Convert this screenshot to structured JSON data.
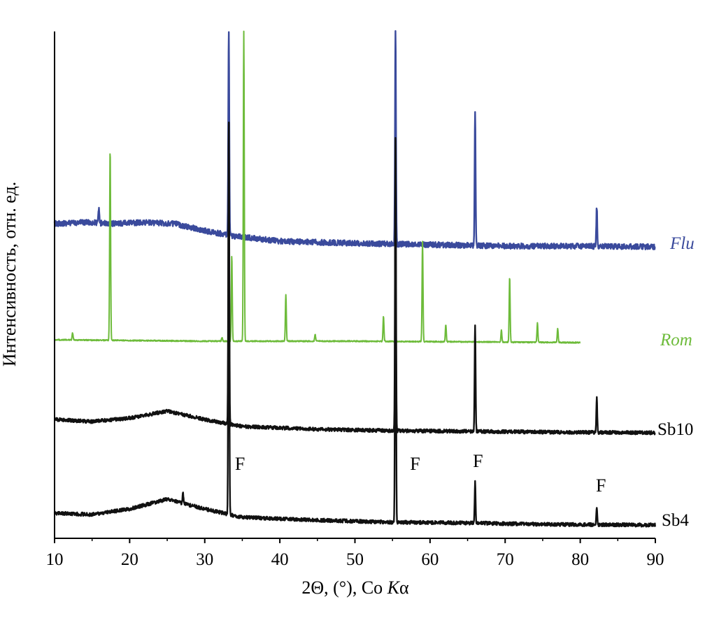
{
  "chart_data": {
    "type": "line",
    "xlabel": {
      "prefix": "2Θ, (°), Co ",
      "italic": "K",
      "suffix": "α"
    },
    "ylabel": "Интенсивность, отн. ед.",
    "xlim": [
      10,
      90
    ],
    "xticks": [
      10,
      20,
      30,
      40,
      50,
      60,
      70,
      80,
      90
    ],
    "y_ticks_shown": false,
    "grid": false,
    "legend": "labels at end of each curve",
    "series": [
      {
        "name": "Flu",
        "italic": true,
        "color": "#3a4a9c",
        "x_range": [
          10,
          90
        ],
        "baseline_points": [
          [
            10,
            320
          ],
          [
            14,
            318
          ],
          [
            18,
            320
          ],
          [
            22,
            318
          ],
          [
            26,
            320
          ],
          [
            30,
            330
          ],
          [
            34,
            338
          ],
          [
            40,
            345
          ],
          [
            50,
            348
          ],
          [
            60,
            350
          ],
          [
            70,
            352
          ],
          [
            80,
            352
          ],
          [
            90,
            353
          ]
        ],
        "noise": 4,
        "peaks": [
          {
            "x": 15.9,
            "top": 298
          },
          {
            "x": 33.2,
            "top": 45
          },
          {
            "x": 55.4,
            "top": 45
          },
          {
            "x": 66.0,
            "top": 158
          },
          {
            "x": 82.2,
            "top": 296
          }
        ]
      },
      {
        "name": "Rom",
        "italic": true,
        "color": "#6dbb3a",
        "x_range": [
          10,
          80
        ],
        "baseline_points": [
          [
            10,
            486
          ],
          [
            30,
            488
          ],
          [
            50,
            488
          ],
          [
            80,
            490
          ]
        ],
        "noise": 0.8,
        "peaks": [
          {
            "x": 12.4,
            "top": 476
          },
          {
            "x": 17.4,
            "top": 212
          },
          {
            "x": 32.3,
            "top": 483
          },
          {
            "x": 33.6,
            "top": 366
          },
          {
            "x": 35.2,
            "top": 45
          },
          {
            "x": 40.8,
            "top": 422
          },
          {
            "x": 44.7,
            "top": 478
          },
          {
            "x": 53.8,
            "top": 452
          },
          {
            "x": 59.0,
            "top": 346
          },
          {
            "x": 62.1,
            "top": 464
          },
          {
            "x": 69.5,
            "top": 472
          },
          {
            "x": 70.6,
            "top": 396
          },
          {
            "x": 74.3,
            "top": 462
          },
          {
            "x": 77.0,
            "top": 470
          }
        ]
      },
      {
        "name": "Sb10",
        "italic": false,
        "color": "#111111",
        "x_range": [
          10,
          90
        ],
        "baseline_points": [
          [
            10,
            600
          ],
          [
            15,
            603
          ],
          [
            20,
            598
          ],
          [
            25,
            588
          ],
          [
            30,
            600
          ],
          [
            35,
            610
          ],
          [
            45,
            614
          ],
          [
            55,
            616
          ],
          [
            65,
            617
          ],
          [
            75,
            618
          ],
          [
            90,
            619
          ]
        ],
        "noise": 2.5,
        "peaks": [
          {
            "x": 33.2,
            "top": 176
          },
          {
            "x": 55.4,
            "top": 196
          },
          {
            "x": 66.0,
            "top": 464
          },
          {
            "x": 82.2,
            "top": 570
          }
        ]
      },
      {
        "name": "Sb4",
        "italic": false,
        "color": "#111111",
        "x_range": [
          10,
          90
        ],
        "baseline_points": [
          [
            10,
            734
          ],
          [
            15,
            736
          ],
          [
            20,
            728
          ],
          [
            25,
            714
          ],
          [
            30,
            728
          ],
          [
            35,
            740
          ],
          [
            45,
            744
          ],
          [
            55,
            747
          ],
          [
            65,
            748
          ],
          [
            75,
            750
          ],
          [
            90,
            751
          ]
        ],
        "noise": 2.5,
        "peaks": [
          {
            "x": 27.1,
            "top": 704
          },
          {
            "x": 33.2,
            "top": 176
          },
          {
            "x": 55.4,
            "top": 196
          },
          {
            "x": 66.0,
            "top": 690
          },
          {
            "x": 82.2,
            "top": 726
          }
        ]
      }
    ],
    "annotations": [
      {
        "text": "F",
        "x": 33.2
      },
      {
        "text": "F",
        "x": 55.4
      },
      {
        "text": "F",
        "x": 66.0
      },
      {
        "text": "F",
        "x": 82.2
      }
    ]
  }
}
